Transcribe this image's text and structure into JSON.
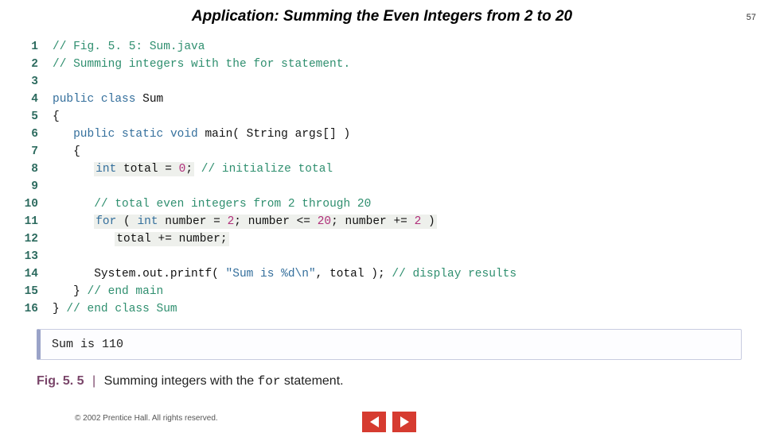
{
  "page_number": "57",
  "title": "Application: Summing the Even Integers from 2 to 20",
  "code": {
    "line_numbers": [
      "1",
      "2",
      "3",
      "4",
      "5",
      "6",
      "7",
      "8",
      "9",
      "10",
      "11",
      "12",
      "13",
      "14",
      "15",
      "16"
    ],
    "colors": {
      "comment": "#2f8f6f",
      "keyword": "#346f9c",
      "number": "#b02f7a",
      "string": "#346f9c",
      "gutter": "#2d6b5f",
      "highlight_bg": "#eef0ec"
    },
    "l1": {
      "cmt": "// Fig. 5. 5: Sum.java"
    },
    "l2": {
      "cmt": "// Summing integers with the for statement."
    },
    "l4": {
      "kw1": "public",
      "kw2": "class",
      "id": "Sum"
    },
    "l5": {
      "txt": "{"
    },
    "l6": {
      "indent": "   ",
      "kw1": "public",
      "kw2": "static",
      "kw3": "void",
      "id": "main( String args[] )"
    },
    "l7": {
      "indent": "   ",
      "txt": "{"
    },
    "l8": {
      "indent": "      ",
      "kw": "int",
      "id1": " total ",
      "op": "= ",
      "num": "0",
      "semi": ";",
      "cmt": " // initialize total"
    },
    "l10": {
      "indent": "      ",
      "cmt": "// total even integers from 2 through 20"
    },
    "l11": {
      "indent": "      ",
      "kw1": "for",
      "p1": " ( ",
      "kw2": "int",
      "id1": " number ",
      "op1": "= ",
      "n1": "2",
      "sep1": "; ",
      "id2": "number ",
      "op2": "<= ",
      "n2": "20",
      "sep2": "; ",
      "id3": "number ",
      "op3": "+= ",
      "n3": "2",
      "p2": " )"
    },
    "l12": {
      "indent": "         ",
      "txt": "total += number;"
    },
    "l14": {
      "indent": "      ",
      "obj": "System.out.printf( ",
      "str": "\"Sum is %d\\n\"",
      "rest": ", total );",
      "cmt": " // display results"
    },
    "l15": {
      "indent": "   ",
      "txt": "}",
      "cmt": " // end main"
    },
    "l16": {
      "txt": "}",
      "cmt": " // end class Sum"
    }
  },
  "output": "Sum is 110",
  "figure": {
    "label": "Fig. 5. 5",
    "sep": "|",
    "text_before": "Summing integers with the ",
    "code_word": "for",
    "text_after": " statement."
  },
  "copyright": "© 2002 Prentice Hall.  All rights reserved.",
  "nav": {
    "prev": "prev",
    "next": "next"
  }
}
